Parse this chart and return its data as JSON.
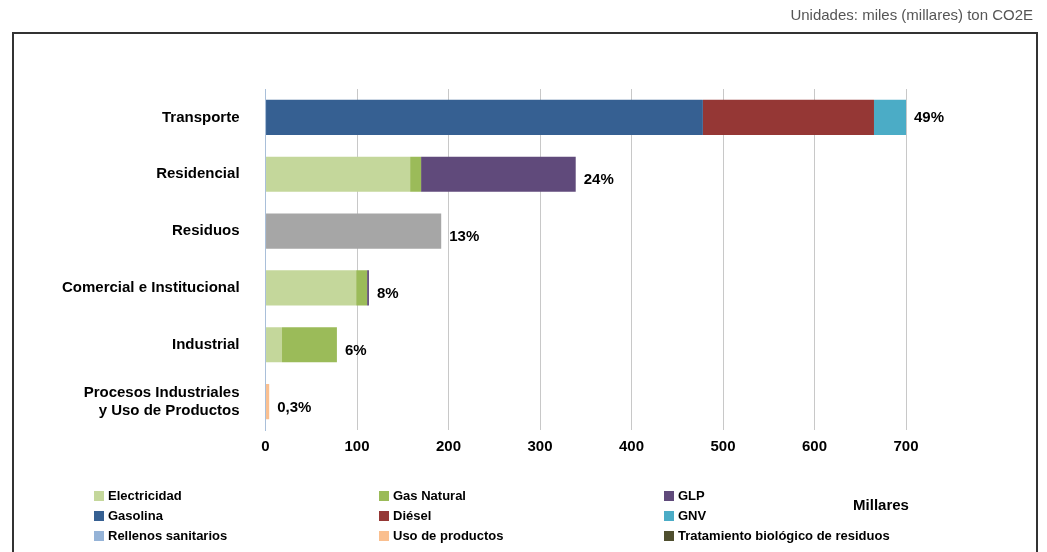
{
  "chart_data": {
    "type": "bar",
    "orientation": "horizontal",
    "stacked": true,
    "annotations": [
      "Unidades: miles (millares) ton CO2E",
      {
        "text": "49%",
        "x": 700,
        "y": "Transporte"
      },
      {
        "text": "24%",
        "x": 339,
        "y": "Residencial"
      },
      {
        "text": "13%",
        "x": 192,
        "y": "Residuos"
      },
      {
        "text": "8%",
        "x": 113,
        "y": "Comercial e Institucional"
      },
      {
        "text": "6%",
        "x": 78,
        "y": "Industrial"
      },
      {
        "text": "0,3%",
        "x": 4,
        "y": "Procesos Industriales y Uso de Productos"
      }
    ],
    "xlabel": "Millares",
    "categories": [
      "Transporte",
      "Residencial",
      "Residuos",
      "Comercial e Institucional",
      "Industrial",
      "Procesos Industriales y Uso de Productos"
    ],
    "series": [
      {
        "name": "Electricidad",
        "color": "#c4d79b",
        "values": [
          null,
          158,
          null,
          99,
          18,
          null
        ]
      },
      {
        "name": "Gas Natural",
        "color": "#9bbb59",
        "values": [
          null,
          12,
          null,
          12,
          60,
          null
        ]
      },
      {
        "name": "GLP",
        "color": "#604a7b",
        "values": [
          null,
          169,
          null,
          2,
          null,
          null
        ]
      },
      {
        "name": "Gasolina",
        "color": "#366092",
        "values": [
          478,
          null,
          null,
          null,
          null,
          null
        ]
      },
      {
        "name": "Diésel",
        "color": "#953735",
        "values": [
          187,
          null,
          null,
          null,
          null,
          null
        ]
      },
      {
        "name": "GNV",
        "color": "#4bacc6",
        "values": [
          35,
          null,
          null,
          null,
          null,
          null
        ]
      },
      {
        "color": "#a6a6a6",
        "values": [
          null,
          null,
          192,
          null,
          null,
          null
        ]
      },
      {
        "name": "Rellenos sanitarios",
        "color": "#95b3d7",
        "values": [
          null,
          null,
          null,
          null,
          null,
          null
        ]
      },
      {
        "name": "Uso de productos",
        "color": "#fabf8f",
        "values": [
          null,
          null,
          null,
          null,
          null,
          4
        ]
      },
      {
        "name": "Tratamiento biológico de residuos",
        "color": "#4f4f2f",
        "values": [
          null,
          null,
          null,
          null,
          null,
          null
        ]
      }
    ],
    "xlim": [
      0,
      700
    ],
    "xticks": [
      0,
      100,
      200,
      300,
      400,
      500,
      600,
      700
    ],
    "grid": "x",
    "legend": "bottom"
  }
}
